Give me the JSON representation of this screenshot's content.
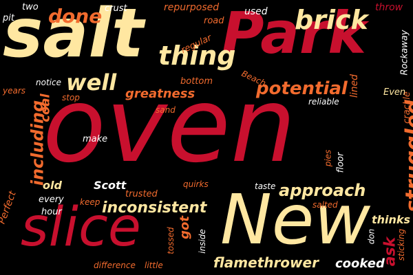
{
  "colors": {
    "background": "#000000",
    "red": "#c8102e",
    "cream": "#ffe7a1",
    "orange": "#f26b2e",
    "white": "#ffffff"
  },
  "words": {
    "oven": "oven",
    "salt": "salt",
    "park": "Park",
    "new": "New",
    "slice": "slice",
    "brick": "brick",
    "thing": "thing",
    "potential": "potential",
    "well": "well",
    "done": "done",
    "approach": "approach",
    "struggled": "struggled",
    "inconsistent": "inconsistent",
    "including": "including",
    "flamethrower": "flamethrower",
    "greatness": "greatness",
    "coal": "coal",
    "cooked": "cooked",
    "thinks": "thinks",
    "ask": "ask",
    "scott": "Scott",
    "trusted": "trusted",
    "old": "old",
    "every": "every",
    "hour": "hour",
    "perfect": "Perfect",
    "two": "two",
    "pit": "pit",
    "crust": "crust",
    "repurposed": "repurposed",
    "road": "road",
    "used": "used",
    "throw": "throw",
    "even": "Even",
    "regular": "regular",
    "bottom": "bottom",
    "rockaway": "Rockaway",
    "beach": "Beach",
    "years": "years",
    "notice": "notice",
    "stop": "stop",
    "sand": "sand",
    "lined": "lined",
    "reliable": "reliable",
    "crackle": "crackle",
    "make": "make",
    "pies": "pies",
    "floor": "floor",
    "taste": "taste",
    "quirks": "quirks",
    "keep": "keep",
    "salted": "salted",
    "got": "got",
    "inside": "inside",
    "tossed": "tossed",
    "little": "little",
    "difference": "difference",
    "don": "don",
    "sticking": "sticking"
  }
}
